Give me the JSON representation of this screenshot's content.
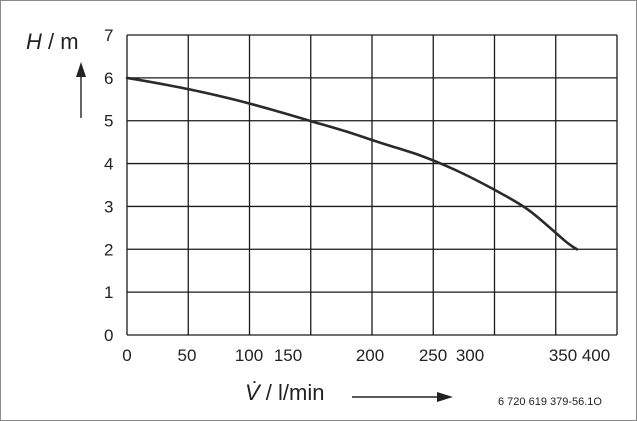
{
  "chart_data": {
    "type": "line",
    "title": "",
    "ylabel": {
      "symbol": "H",
      "unit": "/ m"
    },
    "xlabel": {
      "symbol": "V̇",
      "unit": "/ l/min"
    },
    "ylim": [
      0,
      7
    ],
    "y_ticks": [
      "0",
      "1",
      "2",
      "3",
      "4",
      "5",
      "6",
      "7"
    ],
    "x_ticks": [
      {
        "label": "0",
        "value": 0
      },
      {
        "label": "50",
        "value": 50
      },
      {
        "label": "100",
        "value": 100
      },
      {
        "label": "150",
        "value": 150
      },
      {
        "label": "200",
        "value": 200
      },
      {
        "label": "250",
        "value": 250
      },
      {
        "label": "300",
        "value": 300
      },
      {
        "label": "350",
        "value": 350
      },
      {
        "label": "400",
        "value": 400
      }
    ],
    "grid": true,
    "series": [
      {
        "x": [
          0,
          30,
          60,
          90,
          120,
          150,
          180,
          210,
          240,
          270,
          300,
          330,
          360,
          370
        ],
        "y": [
          6.0,
          5.85,
          5.68,
          5.48,
          5.25,
          5.0,
          4.75,
          4.47,
          4.2,
          3.85,
          3.42,
          2.92,
          2.2,
          2.0
        ]
      }
    ],
    "reference_code": "6 720 619 379-56.1O"
  }
}
